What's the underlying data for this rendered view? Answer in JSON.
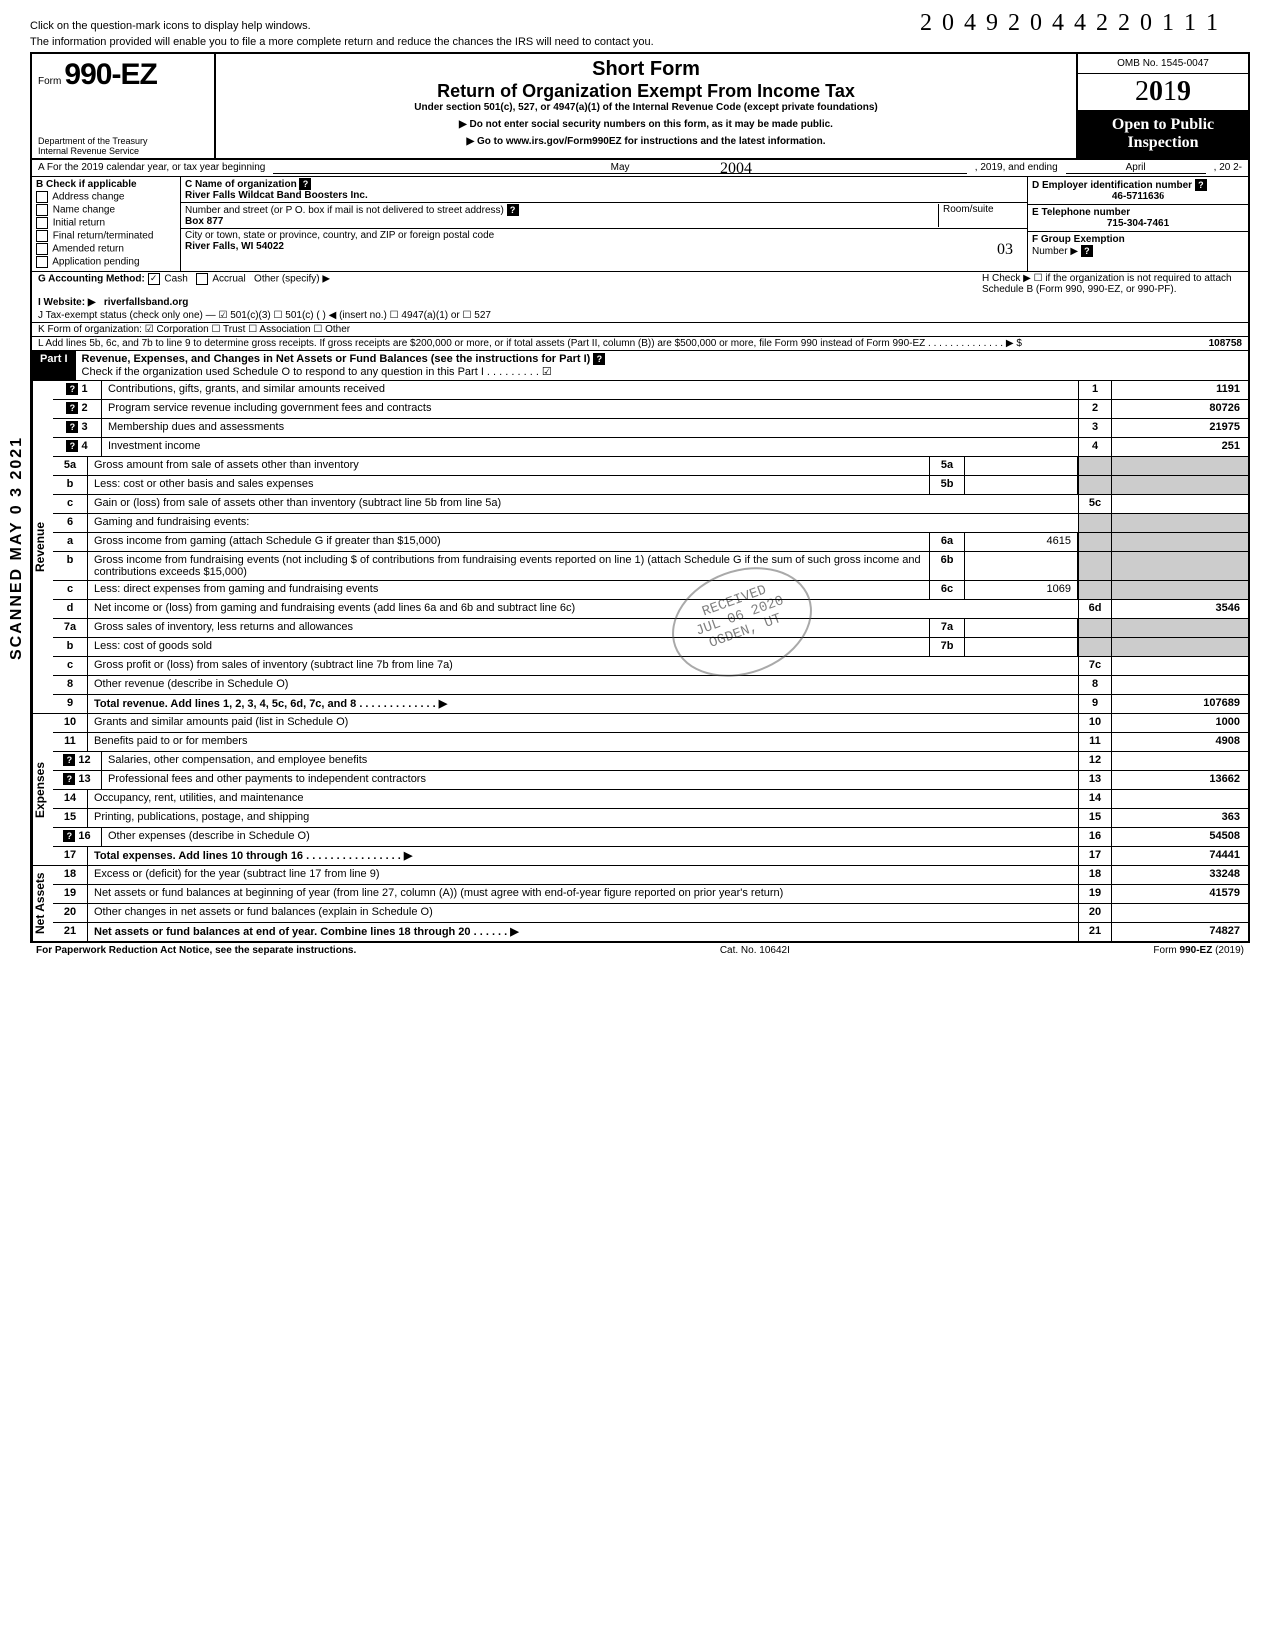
{
  "top": {
    "note1": "Click on the question-mark icons to display help windows.",
    "note2": "The information provided will enable you to file a more complete return and reduce the chances the IRS will need to contact you.",
    "handwritten_top": "2 0 4 9 2 0 4 4 2 2 0 1 1   1"
  },
  "header": {
    "form_word": "Form",
    "form_number": "990-EZ",
    "dept": "Department of the Treasury\nInternal Revenue Service",
    "short_form": "Short Form",
    "title": "Return of Organization Exempt From Income Tax",
    "subtitle": "Under section 501(c), 527, or 4947(a)(1) of the Internal Revenue Code (except private foundations)",
    "instruct1": "▶ Do not enter social security numbers on this form, as it may be made public.",
    "instruct2": "▶ Go to www.irs.gov/Form990EZ for instructions and the latest information.",
    "omb": "OMB No. 1545-0047",
    "year": "2019",
    "open": "Open to Public Inspection",
    "hw_2004": "2004"
  },
  "row_a": {
    "label": "A  For the 2019 calendar year, or tax year beginning",
    "begin_month": "May",
    "mid": ", 2019, and ending",
    "end_month": "April",
    "end": ", 20  2-"
  },
  "section_b": {
    "b_label": "B  Check if applicable",
    "checks": [
      "Address change",
      "Name change",
      "Initial return",
      "Final return/terminated",
      "Amended return",
      "Application pending"
    ],
    "c_label": "C  Name of organization",
    "org_name": "River Falls Wildcat Band Boosters Inc.",
    "addr_label": "Number and street (or P O. box if mail is not delivered to street address)",
    "room_label": "Room/suite",
    "addr": "Box 877",
    "city_label": "City or town, state or province, country, and ZIP or foreign postal code",
    "city": "River Falls, WI  54022",
    "hw_03": "03",
    "d_label": "D Employer identification number",
    "ein": "46-571163",
    "ein_hw": "6",
    "e_label": "E Telephone number",
    "tel": "715-304-7461",
    "f_label": "F Group Exemption",
    "f_label2": "Number ▶"
  },
  "lines_gk": {
    "g": "G  Accounting Method:",
    "g_cash": "Cash",
    "g_accrual": "Accrual",
    "g_other": "Other (specify) ▶",
    "h": "H  Check ▶ ☐ if the organization is not required to attach Schedule B (Form 990, 990-EZ, or 990-PF).",
    "i": "I   Website: ▶",
    "website": "riverfallsband.org",
    "j": "J  Tax-exempt status (check only one) —  ☑ 501(c)(3)   ☐ 501(c) (        ) ◀ (insert no.)  ☐ 4947(a)(1) or   ☐ 527",
    "k": "K  Form of organization:   ☑ Corporation    ☐ Trust    ☐ Association    ☐ Other",
    "l": "L  Add lines 5b, 6c, and 7b to line 9 to determine gross receipts. If gross receipts are $200,000 or more, or if total assets (Part II, column (B)) are $500,000 or more, file Form 990 instead of Form 990-EZ .   .   .   .   .   .   .   .   .   .   .   .   .   .  ▶  $",
    "l_val": "108758"
  },
  "part1": {
    "label": "Part I",
    "title": "Revenue, Expenses, and Changes in Net Assets or Fund Balances (see the instructions for Part I)",
    "check_line": "Check if the organization used Schedule O to respond to any question in this Part I . . . . . . . . . ☑"
  },
  "scanned_stamp": "SCANNED MAY 0 3 2021",
  "received_stamp": "RECEIVED\nJUL 06 2020\nOGDEN, UT",
  "revenue_label": "Revenue",
  "expenses_label": "Expenses",
  "netassets_label": "Net Assets",
  "lines": [
    {
      "n": "1",
      "d": "Contributions, gifts, grants, and similar amounts received",
      "en": "1",
      "ev": "1191",
      "q": true
    },
    {
      "n": "2",
      "d": "Program service revenue including government fees and contracts",
      "en": "2",
      "ev": "80726",
      "q": true
    },
    {
      "n": "3",
      "d": "Membership dues and assessments",
      "en": "3",
      "ev": "21975",
      "q": true
    },
    {
      "n": "4",
      "d": "Investment income",
      "en": "4",
      "ev": "251",
      "q": true
    },
    {
      "n": "5a",
      "d": "Gross amount from sale of assets other than inventory",
      "sb": "5a",
      "sv": "",
      "grey_end": true
    },
    {
      "n": "b",
      "d": "Less: cost or other basis and sales expenses",
      "sb": "5b",
      "sv": "",
      "grey_end": true
    },
    {
      "n": "c",
      "d": "Gain or (loss) from sale of assets other than inventory (subtract line 5b from line 5a)",
      "en": "5c",
      "ev": ""
    },
    {
      "n": "6",
      "d": "Gaming and fundraising events:",
      "grey_end": true
    },
    {
      "n": "a",
      "d": "Gross income from gaming (attach Schedule G if greater than $15,000)",
      "sb": "6a",
      "sv": "4615",
      "grey_end": true
    },
    {
      "n": "b",
      "d": "Gross income from fundraising events (not including  $                  of contributions from fundraising events reported on line 1) (attach Schedule G if the sum of such gross income and contributions exceeds $15,000)",
      "sb": "6b",
      "sv": "",
      "grey_end": true
    },
    {
      "n": "c",
      "d": "Less: direct expenses from gaming and fundraising events",
      "sb": "6c",
      "sv": "1069",
      "grey_end": true
    },
    {
      "n": "d",
      "d": "Net income or (loss) from gaming and fundraising events (add lines 6a and 6b and subtract line 6c)",
      "en": "6d",
      "ev": "3546"
    },
    {
      "n": "7a",
      "d": "Gross sales of inventory, less returns and allowances",
      "sb": "7a",
      "sv": "",
      "grey_end": true
    },
    {
      "n": "b",
      "d": "Less: cost of goods sold",
      "sb": "7b",
      "sv": "",
      "grey_end": true
    },
    {
      "n": "c",
      "d": "Gross profit or (loss) from sales of inventory (subtract line 7b from line 7a)",
      "en": "7c",
      "ev": ""
    },
    {
      "n": "8",
      "d": "Other revenue (describe in Schedule O)",
      "en": "8",
      "ev": ""
    },
    {
      "n": "9",
      "d": "Total revenue. Add lines 1, 2, 3, 4, 5c, 6d, 7c, and 8   .   .   .   .   .   .   .   .   .   .   .   .   .   ▶",
      "en": "9",
      "ev": "107689",
      "bold": true
    }
  ],
  "expense_lines": [
    {
      "n": "10",
      "d": "Grants and similar amounts paid (list in Schedule O)",
      "en": "10",
      "ev": "1000"
    },
    {
      "n": "11",
      "d": "Benefits paid to or for members",
      "en": "11",
      "ev": "4908"
    },
    {
      "n": "12",
      "d": "Salaries, other compensation, and employee benefits",
      "en": "12",
      "ev": "",
      "q": true
    },
    {
      "n": "13",
      "d": "Professional fees and other payments to independent contractors",
      "en": "13",
      "ev": "13662",
      "q": true
    },
    {
      "n": "14",
      "d": "Occupancy, rent, utilities, and maintenance",
      "en": "14",
      "ev": ""
    },
    {
      "n": "15",
      "d": "Printing, publications, postage, and shipping",
      "en": "15",
      "ev": "363"
    },
    {
      "n": "16",
      "d": "Other expenses (describe in Schedule O)",
      "en": "16",
      "ev": "54508",
      "q": true
    },
    {
      "n": "17",
      "d": "Total expenses. Add lines 10 through 16   .   .   .   .   .   .   .   .   .   .   .   .   .   .   .   .   ▶",
      "en": "17",
      "ev": "74441",
      "bold": true
    }
  ],
  "net_lines": [
    {
      "n": "18",
      "d": "Excess or (deficit) for the year (subtract line 17 from line 9)",
      "en": "18",
      "ev": "33248"
    },
    {
      "n": "19",
      "d": "Net assets or fund balances at beginning of year (from line 27, column (A)) (must agree with end-of-year figure reported on prior year's return)",
      "en": "19",
      "ev": "41579"
    },
    {
      "n": "20",
      "d": "Other changes in net assets or fund balances (explain in Schedule O)",
      "en": "20",
      "ev": ""
    },
    {
      "n": "21",
      "d": "Net assets or fund balances at end of year. Combine lines 18 through 20   .   .   .   .   .   .   ▶",
      "en": "21",
      "ev": "74827",
      "bold": true
    }
  ],
  "footer": {
    "left": "For Paperwork Reduction Act Notice, see the separate instructions.",
    "mid": "Cat. No. 10642I",
    "right": "Form 990-EZ (2019)"
  }
}
